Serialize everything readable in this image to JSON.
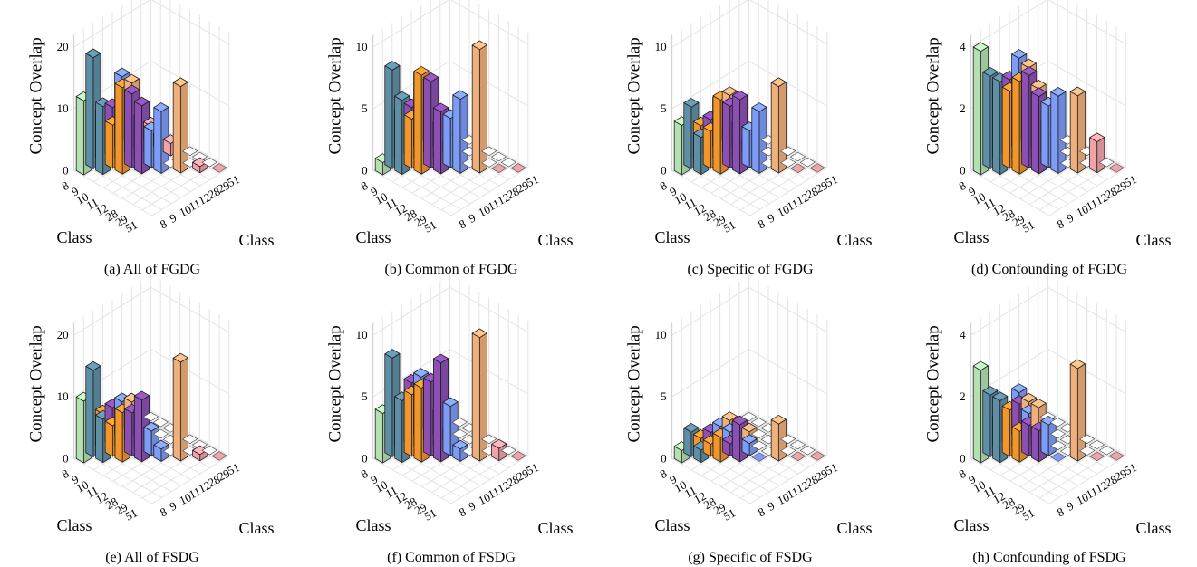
{
  "figure": {
    "class_labels": [
      "8",
      "9",
      "10",
      "11",
      "12",
      "28",
      "29",
      "51"
    ],
    "class_colors": [
      "#b5e0b2",
      "#5f8fa6",
      "#f0962d",
      "#8c4fb4",
      "#7d9cf7",
      "#f0b07b",
      "#f2a3a9",
      "#f2a3a9"
    ],
    "color_index": [
      0,
      1,
      2,
      3,
      4,
      5,
      6,
      6
    ],
    "axis_label_y": "Concept Overlap",
    "axis_label_class": "Class"
  },
  "chart_data": [
    {
      "type": "bar3d",
      "caption": "(a) All of FGDG",
      "zlim": [
        0,
        20
      ],
      "zticks": [
        0,
        10,
        20
      ],
      "zlabel": "Concept Overlap",
      "xlabel": "Class",
      "ylabel": "Class",
      "categories": [
        "8",
        "9",
        "10",
        "11",
        "12",
        "28",
        "29",
        "51"
      ],
      "matrix": [
        [
          12,
          18,
          8,
          8,
          12,
          10,
          0,
          0
        ],
        [
          0,
          11,
          7,
          8,
          6,
          5,
          3,
          0
        ],
        [
          0,
          0,
          14,
          12,
          4,
          2,
          2,
          0
        ],
        [
          0,
          0,
          0,
          11,
          6,
          0,
          2,
          0
        ],
        [
          0,
          0,
          0,
          0,
          10,
          0,
          0,
          0
        ],
        [
          0,
          0,
          0,
          0,
          0,
          14,
          0,
          0
        ],
        [
          0,
          0,
          0,
          0,
          0,
          0,
          1,
          0
        ],
        [
          0,
          0,
          0,
          0,
          0,
          0,
          0,
          0
        ]
      ]
    },
    {
      "type": "bar3d",
      "caption": "(b) Common of FGDG",
      "zlim": [
        0,
        10
      ],
      "zticks": [
        0,
        5,
        10
      ],
      "zlabel": "Concept Overlap",
      "xlabel": "Class",
      "ylabel": "Class",
      "categories": [
        "8",
        "9",
        "10",
        "11",
        "12",
        "28",
        "29",
        "51"
      ],
      "matrix": [
        [
          1,
          8,
          4,
          4,
          6,
          5,
          0,
          0
        ],
        [
          0,
          6,
          4,
          5,
          4,
          2,
          0,
          0
        ],
        [
          0,
          0,
          8,
          7,
          2,
          1,
          0,
          0
        ],
        [
          0,
          0,
          0,
          5,
          4,
          0,
          0,
          0
        ],
        [
          0,
          0,
          0,
          0,
          6,
          0,
          0,
          0
        ],
        [
          0,
          0,
          0,
          0,
          0,
          10,
          0,
          0
        ],
        [
          0,
          0,
          0,
          0,
          0,
          0,
          0,
          0
        ],
        [
          0,
          0,
          0,
          0,
          0,
          0,
          0,
          0
        ]
      ]
    },
    {
      "type": "bar3d",
      "caption": "(c) Specific of FGDG",
      "zlim": [
        0,
        10
      ],
      "zticks": [
        0,
        5,
        10
      ],
      "zlabel": "Concept Overlap",
      "xlabel": "Class",
      "ylabel": "Class",
      "categories": [
        "8",
        "9",
        "10",
        "11",
        "12",
        "28",
        "29",
        "51"
      ],
      "matrix": [
        [
          4,
          5,
          3,
          3,
          4,
          4,
          0,
          0
        ],
        [
          0,
          3,
          3,
          3,
          2,
          2,
          0,
          0
        ],
        [
          0,
          0,
          6,
          5,
          2,
          1,
          0,
          0
        ],
        [
          0,
          0,
          0,
          6,
          3,
          0,
          0,
          0
        ],
        [
          0,
          0,
          0,
          0,
          5,
          0,
          0,
          0
        ],
        [
          0,
          0,
          0,
          0,
          0,
          7,
          0,
          0
        ],
        [
          0,
          0,
          0,
          0,
          0,
          0,
          0,
          0
        ],
        [
          0,
          0,
          0,
          0,
          0,
          0,
          0,
          0
        ]
      ]
    },
    {
      "type": "bar3d",
      "caption": "(d) Confounding of FGDG",
      "zlim": [
        0,
        4
      ],
      "zticks": [
        0,
        2,
        4
      ],
      "zlabel": "Concept Overlap",
      "xlabel": "Class",
      "ylabel": "Class",
      "categories": [
        "8",
        "9",
        "10",
        "11",
        "12",
        "28",
        "29",
        "51"
      ],
      "matrix": [
        [
          4,
          3,
          2.5,
          2.5,
          3,
          2.5,
          0,
          0
        ],
        [
          0,
          3,
          2.5,
          2.5,
          2,
          2,
          0,
          0
        ],
        [
          0,
          0,
          3,
          3,
          2,
          1,
          0,
          0
        ],
        [
          0,
          0,
          0,
          2.5,
          2,
          0,
          0,
          0
        ],
        [
          0,
          0,
          0,
          0,
          2.5,
          0,
          0,
          0
        ],
        [
          0,
          0,
          0,
          0,
          0,
          2.5,
          0,
          0
        ],
        [
          0,
          0,
          0,
          0,
          0,
          0,
          1,
          0
        ],
        [
          0,
          0,
          0,
          0,
          0,
          0,
          0,
          0
        ]
      ]
    },
    {
      "type": "bar3d",
      "caption": "(e) All of FSDG",
      "zlim": [
        0,
        20
      ],
      "zticks": [
        0,
        10,
        20
      ],
      "zlabel": "Concept Overlap",
      "xlabel": "Class",
      "ylabel": "Class",
      "categories": [
        "8",
        "9",
        "10",
        "11",
        "12",
        "28",
        "29",
        "51"
      ],
      "matrix": [
        [
          10,
          14,
          6,
          6,
          6,
          5,
          0,
          0
        ],
        [
          0,
          7,
          5,
          6,
          5,
          4,
          0,
          0
        ],
        [
          0,
          0,
          8,
          7,
          3,
          2,
          0,
          0
        ],
        [
          0,
          0,
          0,
          10,
          4,
          0,
          0,
          0
        ],
        [
          0,
          0,
          0,
          0,
          2,
          0,
          0,
          0
        ],
        [
          0,
          0,
          0,
          0,
          0,
          16,
          0,
          0
        ],
        [
          0,
          0,
          0,
          0,
          0,
          0,
          1,
          0
        ],
        [
          0,
          0,
          0,
          0,
          0,
          0,
          0,
          0
        ]
      ]
    },
    {
      "type": "bar3d",
      "caption": "(f) Common of FSDG",
      "zlim": [
        0,
        10
      ],
      "zticks": [
        0,
        5,
        10
      ],
      "zlabel": "Concept Overlap",
      "xlabel": "Class",
      "ylabel": "Class",
      "categories": [
        "8",
        "9",
        "10",
        "11",
        "12",
        "28",
        "29",
        "51"
      ],
      "matrix": [
        [
          4,
          8,
          4,
          5,
          5,
          4,
          0,
          0
        ],
        [
          0,
          5,
          5,
          5,
          3,
          2,
          0,
          0
        ],
        [
          0,
          0,
          6,
          6,
          2,
          1,
          0,
          0
        ],
        [
          0,
          0,
          0,
          8,
          4,
          0,
          0,
          0
        ],
        [
          0,
          0,
          0,
          0,
          1,
          0,
          0,
          0
        ],
        [
          0,
          0,
          0,
          0,
          0,
          10,
          0,
          0
        ],
        [
          0,
          0,
          0,
          0,
          0,
          0,
          1,
          0
        ],
        [
          0,
          0,
          0,
          0,
          0,
          0,
          0,
          0
        ]
      ]
    },
    {
      "type": "bar3d",
      "caption": "(g) Specific of FSDG",
      "zlim": [
        0,
        10
      ],
      "zticks": [
        0,
        5,
        10
      ],
      "zlabel": "Concept Overlap",
      "xlabel": "Class",
      "ylabel": "Class",
      "categories": [
        "8",
        "9",
        "10",
        "11",
        "12",
        "28",
        "29",
        "51"
      ],
      "matrix": [
        [
          1,
          2,
          1,
          1,
          1,
          1,
          0,
          0
        ],
        [
          0,
          1,
          1,
          1,
          1,
          1,
          0,
          0
        ],
        [
          0,
          0,
          2,
          1,
          1,
          1,
          0,
          0
        ],
        [
          0,
          0,
          0,
          3,
          1,
          0,
          0,
          0
        ],
        [
          0,
          0,
          0,
          0,
          0,
          0,
          0,
          0
        ],
        [
          0,
          0,
          0,
          0,
          0,
          3,
          0,
          0
        ],
        [
          0,
          0,
          0,
          0,
          0,
          0,
          0,
          0
        ],
        [
          0,
          0,
          0,
          0,
          0,
          0,
          0,
          0
        ]
      ]
    },
    {
      "type": "bar3d",
      "caption": "(h) Confounding of FSDG",
      "zlim": [
        0,
        4
      ],
      "zticks": [
        0,
        2,
        4
      ],
      "zlabel": "Concept Overlap",
      "xlabel": "Class",
      "ylabel": "Class",
      "categories": [
        "8",
        "9",
        "10",
        "11",
        "12",
        "28",
        "29",
        "51"
      ],
      "matrix": [
        [
          3,
          2,
          1,
          1,
          1.5,
          1,
          0,
          0
        ],
        [
          0,
          2,
          1.5,
          1.5,
          1,
          1,
          0,
          0
        ],
        [
          0,
          0,
          1,
          1,
          0.5,
          0.5,
          0,
          0
        ],
        [
          0,
          0,
          0,
          1,
          1,
          0,
          0,
          0
        ],
        [
          0,
          0,
          0,
          0,
          0,
          0,
          0,
          0
        ],
        [
          0,
          0,
          0,
          0,
          0,
          3,
          0,
          0
        ],
        [
          0,
          0,
          0,
          0,
          0,
          0,
          0,
          0
        ],
        [
          0,
          0,
          0,
          0,
          0,
          0,
          0,
          0
        ]
      ]
    }
  ]
}
